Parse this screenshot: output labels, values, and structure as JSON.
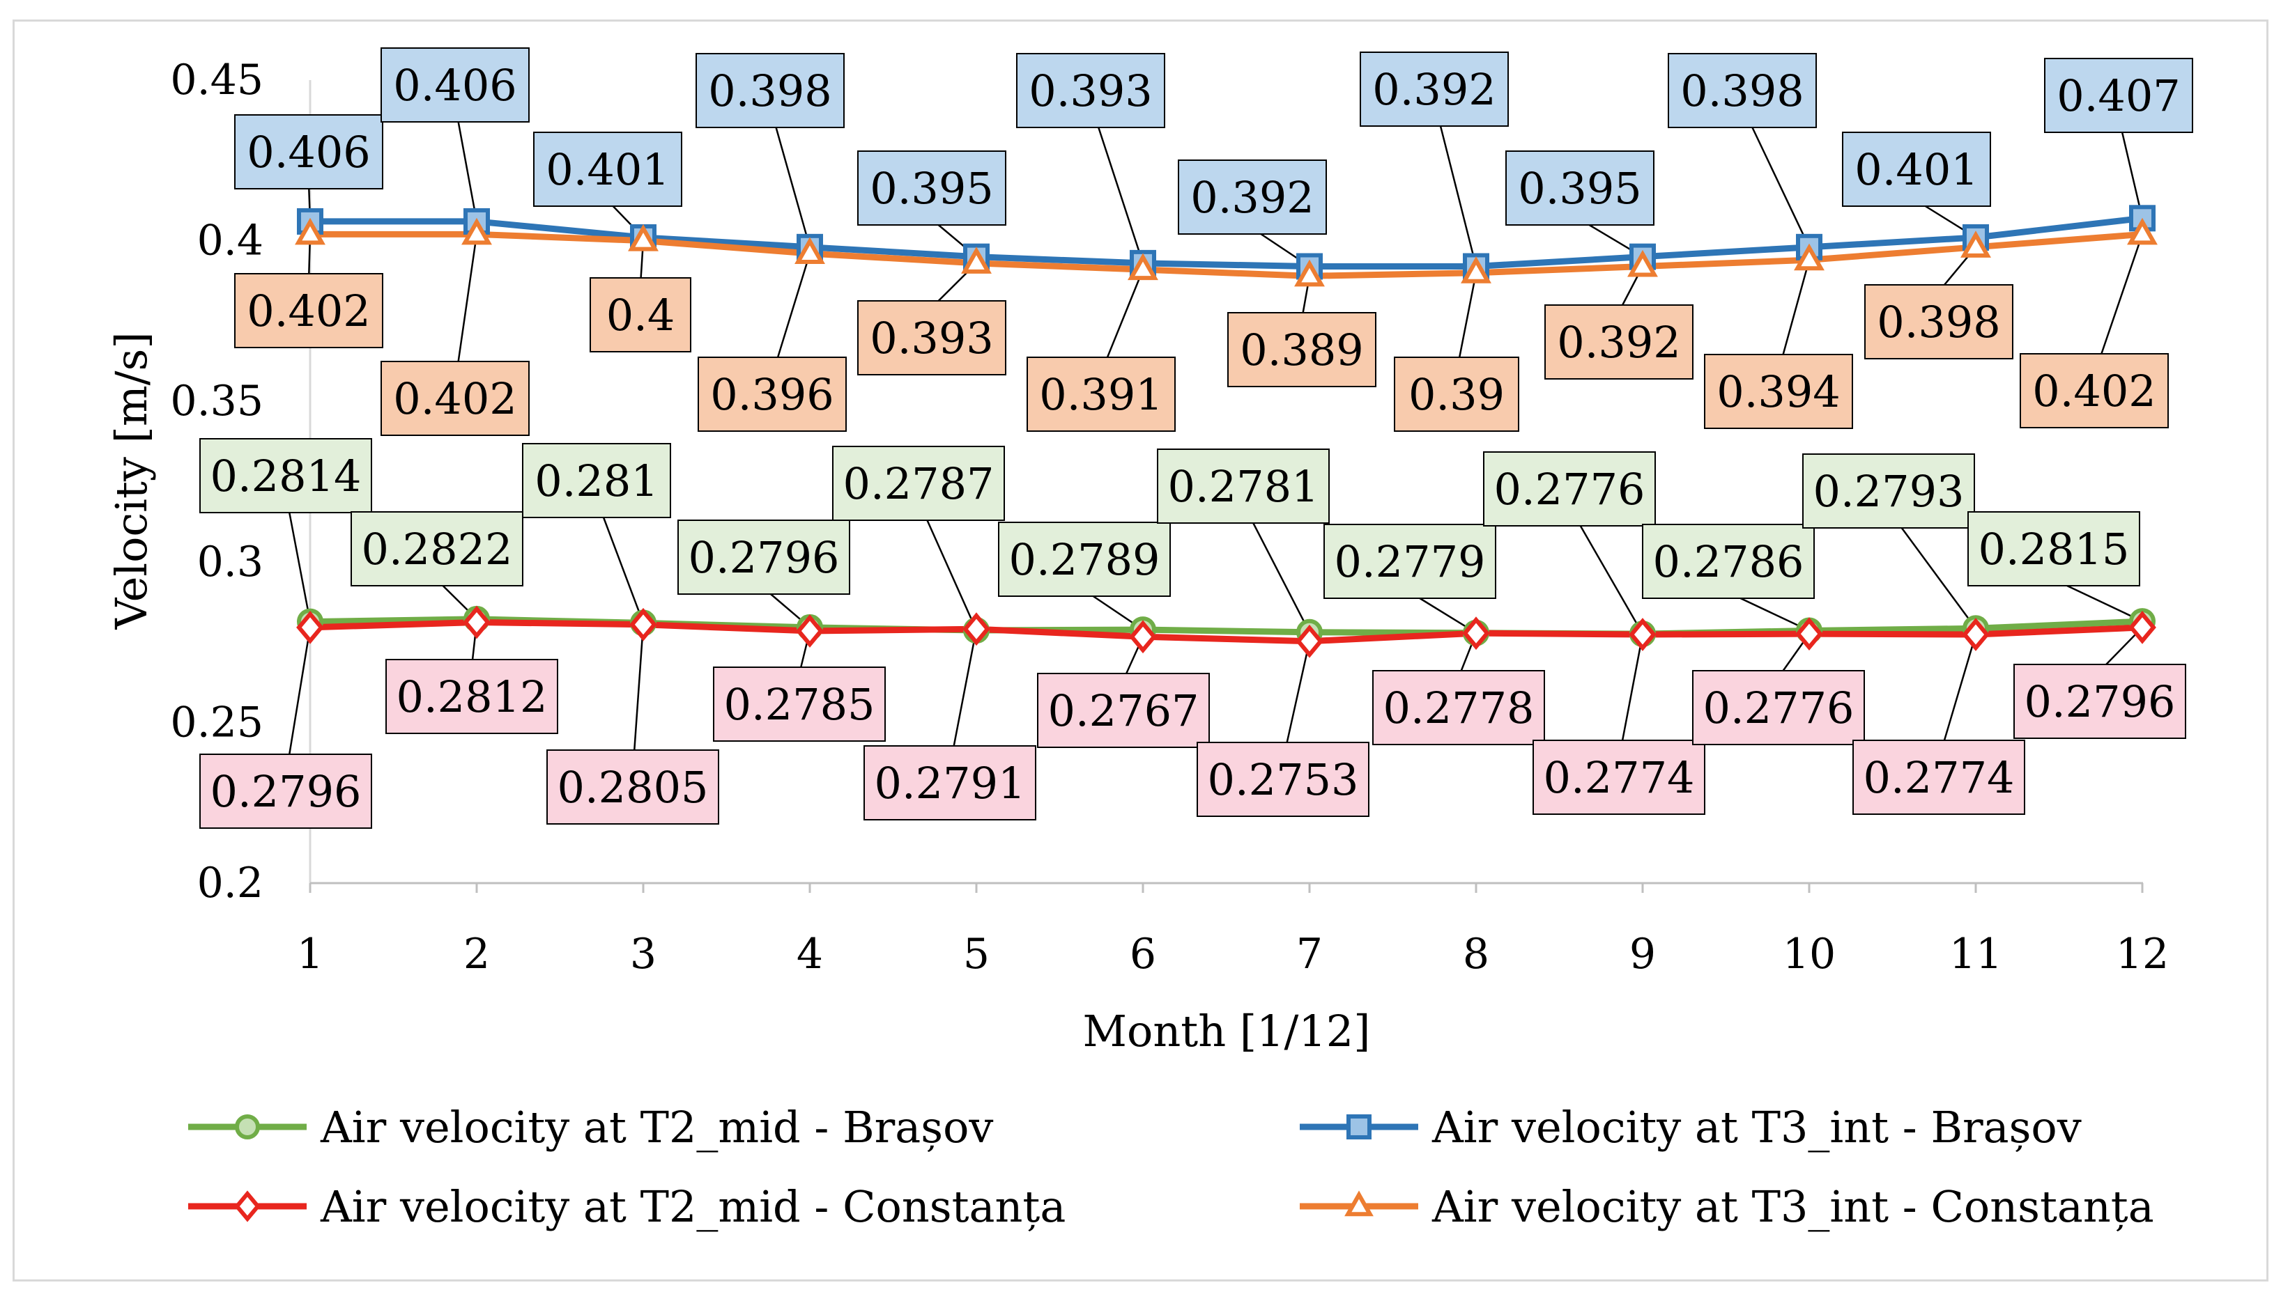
{
  "chart_data": {
    "type": "line",
    "x": [
      1,
      2,
      3,
      4,
      5,
      6,
      7,
      8,
      9,
      10,
      11,
      12
    ],
    "xlabel": "Month [1/12]",
    "ylabel": "Velocity [m/s]",
    "ylim": [
      0.2,
      0.45
    ],
    "yticks": [
      "0.2",
      "0.25",
      "0.3",
      "0.35",
      "0.4",
      "0.45"
    ],
    "xticks": [
      "1",
      "2",
      "3",
      "4",
      "5",
      "6",
      "7",
      "8",
      "9",
      "10",
      "11",
      "12"
    ],
    "legend_position": "bottom",
    "grid": false,
    "series": [
      {
        "name": "Air velocity at T2_mid - Brașov",
        "color": "#70ad47",
        "marker": "circle",
        "label_fill": "#e2efda",
        "values": [
          0.2814,
          0.2822,
          0.281,
          0.2796,
          0.2787,
          0.2789,
          0.2781,
          0.2779,
          0.2776,
          0.2786,
          0.2793,
          0.2815
        ],
        "labels": [
          "0.2814",
          "0.2822",
          "0.281",
          "0.2796",
          "0.2787",
          "0.2789",
          "0.2781",
          "0.2779",
          "0.2776",
          "0.2786",
          "0.2793",
          "0.2815"
        ]
      },
      {
        "name": "Air velocity at T3_int - Brașov",
        "color": "#2e75b6",
        "marker": "square",
        "label_fill": "#bdd7ee",
        "values": [
          0.406,
          0.406,
          0.401,
          0.398,
          0.395,
          0.393,
          0.392,
          0.392,
          0.395,
          0.398,
          0.401,
          0.407
        ],
        "labels": [
          "0.406",
          "0.406",
          "0.401",
          "0.398",
          "0.395",
          "0.393",
          "0.392",
          "0.392",
          "0.395",
          "0.398",
          "0.401",
          "0.407"
        ]
      },
      {
        "name": "Air velocity at T2_mid - Constanța",
        "color": "#e8261e",
        "marker": "diamond",
        "label_fill": "#fad4de",
        "values": [
          0.2796,
          0.2812,
          0.2805,
          0.2785,
          0.2791,
          0.2767,
          0.2753,
          0.2778,
          0.2774,
          0.2776,
          0.2774,
          0.2796
        ],
        "labels": [
          "0.2796",
          "0.2812",
          "0.2805",
          "0.2785",
          "0.2791",
          "0.2767",
          "0.2753",
          "0.2778",
          "0.2774",
          "0.2776",
          "0.2774",
          "0.2796"
        ]
      },
      {
        "name": "Air velocity at T3_int - Constanța",
        "color": "#ed7d31",
        "marker": "triangle",
        "label_fill": "#f8cbad",
        "values": [
          0.402,
          0.402,
          0.4,
          0.396,
          0.393,
          0.391,
          0.389,
          0.39,
          0.392,
          0.394,
          0.398,
          0.402
        ],
        "labels": [
          "0.402",
          "0.402",
          "0.4",
          "0.396",
          "0.393",
          "0.391",
          "0.389",
          "0.39",
          "0.392",
          "0.394",
          "0.398",
          "0.402"
        ]
      }
    ]
  }
}
